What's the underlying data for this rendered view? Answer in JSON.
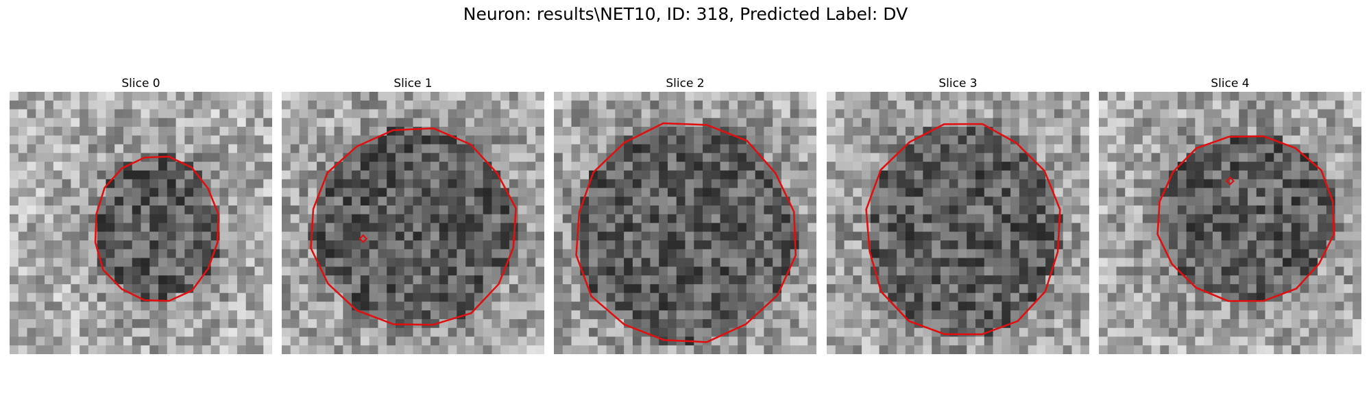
{
  "figure": {
    "title": "Neuron: results\\NET10, ID: 318, Predicted Label: DV"
  },
  "colors": {
    "outline": "#e01010",
    "background": "#ffffff"
  },
  "panels": [
    {
      "title": "Slice 0",
      "seed": 11,
      "marker": false
    },
    {
      "title": "Slice 1",
      "seed": 23,
      "marker": true
    },
    {
      "title": "Slice 2",
      "seed": 37,
      "marker": false
    },
    {
      "title": "Slice 3",
      "seed": 41,
      "marker": false
    },
    {
      "title": "Slice 4",
      "seed": 53,
      "marker": true
    }
  ]
}
